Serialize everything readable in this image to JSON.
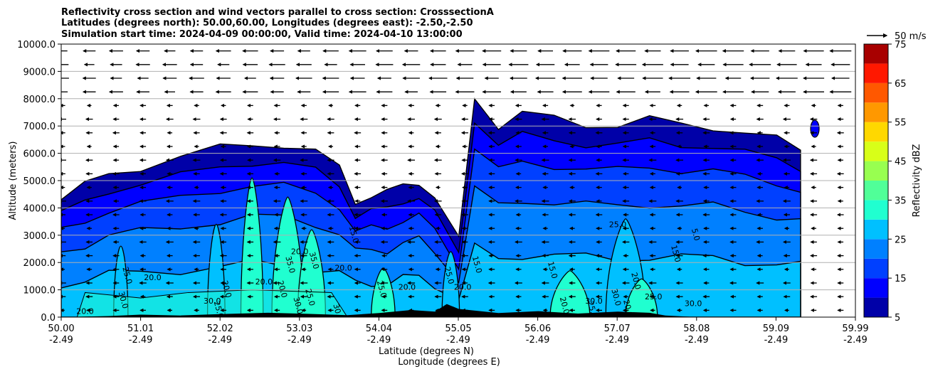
{
  "chart_data": {
    "type": "heatmap",
    "title_lines": [
      "Reflectivity cross section and wind vectors parallel to cross section: CrosssectionA",
      "Latitudes (degrees north): 50.00,60.00, Longitudes (degrees east): -2.50,-2.50",
      "Simulation start time: 2024-04-09 00:00:00, Valid time: 2024-04-10 13:00:00"
    ],
    "ylabel": "Altitude (meters)",
    "xlabel_lat": "Latitude (degrees N)",
    "xlabel_lon": "Longitude (degrees E)",
    "ylim": [
      0,
      10000
    ],
    "xlim": [
      50.0,
      59.99
    ],
    "y_ticks": [
      "0.0",
      "1000.0",
      "2000.0",
      "3000.0",
      "4000.0",
      "5000.0",
      "6000.0",
      "7000.0",
      "8000.0",
      "9000.0",
      "10000.0"
    ],
    "x_ticks_lat": [
      "50.00",
      "51.01",
      "52.02",
      "53.03",
      "54.04",
      "55.05",
      "56.06",
      "57.07",
      "58.08",
      "59.09",
      "59.99"
    ],
    "x_ticks_lon": [
      "-2.49",
      "-2.49",
      "-2.49",
      "-2.49",
      "-2.49",
      "-2.49",
      "-2.49",
      "-2.49",
      "-2.49",
      "-2.49",
      "-2.49"
    ],
    "grid": "horizontal",
    "colorbar": {
      "label": "Reflectivity dBZ",
      "levels": [
        5,
        10,
        15,
        20,
        25,
        30,
        35,
        40,
        45,
        50,
        55,
        60,
        65,
        70,
        75
      ],
      "tick_labels": [
        "5",
        "15",
        "25",
        "35",
        "45",
        "55",
        "65",
        "75"
      ],
      "colors": [
        "#0000a8",
        "#0000ff",
        "#0040ff",
        "#0080ff",
        "#00c0ff",
        "#20ffd0",
        "#50ff98",
        "#98ff50",
        "#d8ff18",
        "#ffd800",
        "#ff9800",
        "#ff5800",
        "#ff1800",
        "#a80000"
      ]
    },
    "wind_key": {
      "label": "50 m/s",
      "speed": 50
    },
    "contour_labels": [
      "20.0",
      "25.0",
      "30.0",
      "20.0",
      "20.0",
      "25.0",
      "30.0",
      "35.0",
      "35.0",
      "20.0",
      "30.0",
      "30.0",
      "20.0",
      "20.0",
      "25.0",
      "20.0",
      "15.0",
      "25.0",
      "20.0",
      "25.0",
      "15.0",
      "20.0",
      "15.0",
      "5.0",
      "30.0",
      "15.0",
      "20.0",
      "25.0",
      "20.0",
      "30.0",
      "25.0",
      "25.0",
      "20.0",
      "30.0"
    ],
    "echo_profile": {
      "lat": [
        50.0,
        50.3,
        50.6,
        51.0,
        51.5,
        52.0,
        52.4,
        52.8,
        53.2,
        53.5,
        53.7,
        53.9,
        54.1,
        54.3,
        54.5,
        54.7,
        55.0,
        55.2,
        55.5,
        55.8,
        56.2,
        56.6,
        57.0,
        57.4,
        57.8,
        58.2,
        58.6,
        59.0,
        59.3
      ],
      "top_m": [
        4300,
        4800,
        5300,
        5500,
        5800,
        6200,
        6400,
        6300,
        6000,
        5500,
        4300,
        4400,
        4500,
        4900,
        5000,
        4300,
        2800,
        8100,
        7000,
        7400,
        7300,
        7100,
        7000,
        7200,
        7100,
        7000,
        6700,
        6500,
        6200
      ]
    }
  }
}
